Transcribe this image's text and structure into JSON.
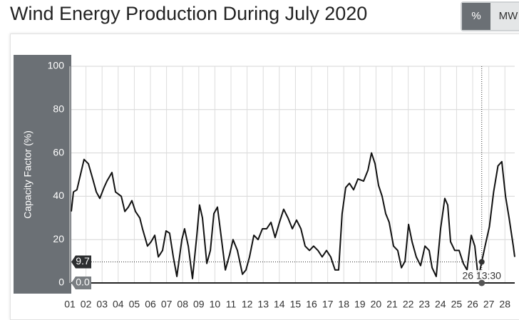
{
  "units_toggle": [
    "%",
    "MW"
  ],
  "chart_data": {
    "type": "line",
    "title": "Wind Energy Production During July 2020",
    "ylabel": "Capacity Factor (%)",
    "color": "#111111",
    "grid": true,
    "xlim": [
      1,
      28.61
    ],
    "ylim": [
      0,
      100
    ],
    "yticks": [
      0,
      20,
      40,
      60,
      80,
      100
    ],
    "xticks": [
      {
        "value": 1,
        "label": "01"
      },
      {
        "value": 2,
        "label": "02"
      },
      {
        "value": 3,
        "label": "03"
      },
      {
        "value": 4,
        "label": "04"
      },
      {
        "value": 5,
        "label": "05"
      },
      {
        "value": 6,
        "label": "06"
      },
      {
        "value": 7,
        "label": "07"
      },
      {
        "value": 8,
        "label": "08"
      },
      {
        "value": 9,
        "label": "09"
      },
      {
        "value": 10,
        "label": "10"
      },
      {
        "value": 11,
        "label": "11"
      },
      {
        "value": 12,
        "label": "12"
      },
      {
        "value": 13,
        "label": "13"
      },
      {
        "value": 14,
        "label": "14"
      },
      {
        "value": 15,
        "label": "15"
      },
      {
        "value": 16,
        "label": "16"
      },
      {
        "value": 17,
        "label": "17"
      },
      {
        "value": 18,
        "label": "18"
      },
      {
        "value": 19,
        "label": "19"
      },
      {
        "value": 20,
        "label": "20"
      },
      {
        "value": 21,
        "label": "21"
      },
      {
        "value": 22,
        "label": "22"
      },
      {
        "value": 23,
        "label": "23"
      },
      {
        "value": 24,
        "label": "24"
      },
      {
        "value": 25,
        "label": "25"
      },
      {
        "value": 26,
        "label": "26"
      },
      {
        "value": 27,
        "label": "27"
      },
      {
        "value": 28,
        "label": "28"
      }
    ],
    "x": [
      1.09,
      1.22,
      1.44,
      1.66,
      1.88,
      2.15,
      2.42,
      2.64,
      2.86,
      3.12,
      3.3,
      3.61,
      3.83,
      4.19,
      4.41,
      4.63,
      4.85,
      5.07,
      5.34,
      5.51,
      5.82,
      6.04,
      6.27,
      6.49,
      6.75,
      6.97,
      7.19,
      7.42,
      7.64,
      7.95,
      8.12,
      8.35,
      8.61,
      8.88,
      9.05,
      9.23,
      9.5,
      9.72,
      9.94,
      10.16,
      10.38,
      10.65,
      10.91,
      11.13,
      11.4,
      11.71,
      11.93,
      12.15,
      12.42,
      12.68,
      12.95,
      13.21,
      13.48,
      13.74,
      14.01,
      14.27,
      14.54,
      14.81,
      15.07,
      15.34,
      15.6,
      15.87,
      16.13,
      16.4,
      16.66,
      16.93,
      17.19,
      17.46,
      17.68,
      17.9,
      18.12,
      18.35,
      18.61,
      18.88,
      19.23,
      19.5,
      19.72,
      19.94,
      20.16,
      20.38,
      20.6,
      20.82,
      21.09,
      21.35,
      21.58,
      21.8,
      22.02,
      22.24,
      22.5,
      22.77,
      23.04,
      23.3,
      23.48,
      23.74,
      24.01,
      24.27,
      24.45,
      24.63,
      24.89,
      25.16,
      25.42,
      25.65,
      25.91,
      26.13,
      26.35,
      26.5625,
      26.77,
      27.04,
      27.3,
      27.57,
      27.81,
      28.04,
      28.26,
      28.52,
      28.61
    ],
    "values": [
      33,
      42,
      43,
      50,
      57,
      55,
      48,
      42,
      39,
      44,
      47,
      51,
      42,
      40,
      33,
      35,
      38,
      33,
      30,
      25,
      17,
      19,
      22,
      12,
      15,
      24,
      23,
      12,
      3,
      20,
      25,
      17,
      2,
      22,
      36,
      30,
      9,
      15,
      32,
      35,
      22,
      6,
      13,
      20,
      15,
      4,
      6,
      12,
      22,
      20,
      25,
      25,
      28,
      21,
      28,
      34,
      30,
      25,
      29,
      25,
      17,
      15,
      17,
      15,
      12,
      15,
      12,
      6,
      6,
      32,
      44,
      46,
      43,
      48,
      47,
      52,
      60,
      55,
      45,
      40,
      32,
      28,
      17,
      15,
      7,
      10,
      27,
      19,
      12,
      8,
      17,
      15,
      7,
      3,
      25,
      39,
      36,
      19,
      15,
      15,
      9,
      6,
      22,
      17,
      2,
      9.7,
      17,
      26,
      42,
      54,
      56,
      40,
      30,
      17,
      12
    ],
    "crosshair": {
      "x": {
        "value": 26.5625,
        "label": "26 13:30"
      },
      "y": 9.7,
      "base": {
        "value": 0,
        "label": "0.0"
      }
    }
  }
}
